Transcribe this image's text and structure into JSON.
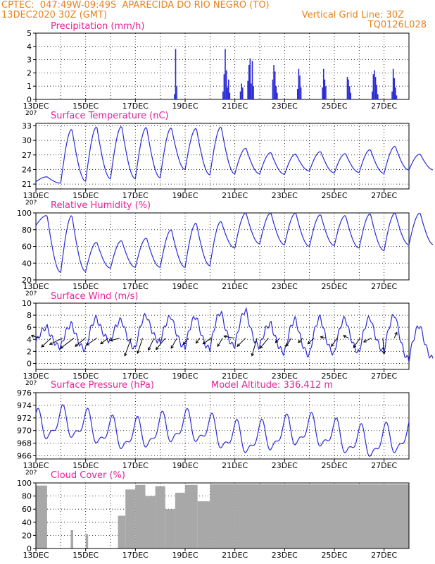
{
  "header": {
    "line1": "CPTEC:  047:49W-09:49S  APARECIDA DO RIO NEGRO (TO)",
    "line2_left": "13DEC2020 30Z (GMT)",
    "line2_right": "Vertical Grid Line: 30Z",
    "line3_right": "TQ0126L028",
    "color": "#e8821e"
  },
  "style": {
    "series_color": "#2b2bd6",
    "title_color": "#e8209a",
    "cloud_color": "#a8a8a8",
    "arrow_color": "#000000"
  },
  "x_tick_labels": [
    "13DEC",
    "15DEC",
    "17DEC",
    "19DEC",
    "21DEC",
    "23DEC",
    "25DEC",
    "27DEC"
  ],
  "x_first_tick_sublabel": "20?",
  "chart_data": [
    {
      "type": "bar",
      "title": "Precipitation (mm/h)",
      "ylim": [
        0,
        5
      ],
      "yticks": [
        "0",
        "1",
        "2",
        "3",
        "4",
        "5"
      ],
      "x": [
        "13DEC",
        "15DEC",
        "17DEC",
        "19DEC",
        "21DEC",
        "23DEC",
        "25DEC",
        "27DEC"
      ],
      "grid": true,
      "values_by_day": [
        {
          "day": 18.55,
          "values": [
            0.4,
            3.8,
            1.0
          ]
        },
        {
          "day": 20.5,
          "values": [
            0.6,
            1.9,
            3.8,
            2.2,
            0.9,
            1.5,
            0.5
          ]
        },
        {
          "day": 21.2,
          "values": [
            0.6,
            1.2,
            0.9
          ]
        },
        {
          "day": 21.5,
          "values": [
            1.4,
            2.6,
            3.1,
            1.2,
            2.9,
            1.0
          ]
        },
        {
          "day": 22.5,
          "values": [
            1.5,
            2.6,
            2.1,
            1.0,
            0.5
          ]
        },
        {
          "day": 23.5,
          "values": [
            0.8,
            2.3,
            1.8,
            0.9
          ]
        },
        {
          "day": 24.5,
          "values": [
            0.9,
            2.3,
            1.5,
            1.0
          ]
        },
        {
          "day": 25.5,
          "values": [
            1.7,
            1.5,
            1.0,
            0.5
          ]
        },
        {
          "day": 26.5,
          "values": [
            0.6,
            1.9,
            2.2,
            1.7,
            1.1,
            0.4
          ]
        },
        {
          "day": 27.3,
          "values": [
            0.6,
            2.3,
            1.6,
            0.9,
            0.3
          ]
        }
      ]
    },
    {
      "type": "line",
      "title": "Surface Temperature (nC)",
      "ylim": [
        20,
        33.5
      ],
      "yticks": [
        "21",
        "24",
        "27",
        "30",
        "33"
      ],
      "x": [
        "13DEC",
        "15DEC",
        "17DEC",
        "19DEC",
        "21DEC",
        "23DEC",
        "25DEC",
        "27DEC"
      ],
      "grid": true,
      "daily_min": [
        21.5,
        21.2,
        21.6,
        22.1,
        22.1,
        22.3,
        24.0,
        22.9,
        23.1,
        23.1,
        23.0,
        23.7,
        23.3,
        23.4,
        23.2,
        23.9
      ],
      "daily_max": [
        22.5,
        32.3,
        32.8,
        32.9,
        32.7,
        32.6,
        32.5,
        32.8,
        28.4,
        27.5,
        27.2,
        27.7,
        27.3,
        28.1,
        28.8,
        27.2
      ]
    },
    {
      "type": "line",
      "title": "Relative Humidity (%)",
      "ylim": [
        20,
        100
      ],
      "yticks": [
        "20",
        "40",
        "60",
        "80",
        "100"
      ],
      "x": [
        "13DEC",
        "15DEC",
        "17DEC",
        "19DEC",
        "21DEC",
        "23DEC",
        "25DEC",
        "27DEC"
      ],
      "grid": true,
      "daily_min": [
        85,
        29,
        30,
        34,
        35,
        35,
        35,
        37,
        58,
        63,
        62,
        60,
        61,
        58,
        55,
        62
      ],
      "daily_max": [
        97,
        97,
        65,
        67,
        70,
        80,
        88,
        90,
        100,
        100,
        100,
        98,
        97,
        99,
        100,
        100
      ]
    },
    {
      "type": "line",
      "title": "Surface Wind (m/s)",
      "ylim": [
        -1,
        10
      ],
      "yticks": [
        "0",
        "2",
        "4",
        "6",
        "8",
        "10"
      ],
      "x": [
        "13DEC",
        "15DEC",
        "17DEC",
        "19DEC",
        "21DEC",
        "23DEC",
        "25DEC",
        "27DEC"
      ],
      "grid": true,
      "daily_min": [
        3.5,
        2.7,
        2.3,
        3.8,
        2.6,
        3.6,
        2.7,
        2.4,
        2.8,
        2.8,
        1.8,
        1.4,
        1.7,
        1.9,
        2.1,
        0.7
      ],
      "daily_max": [
        6.0,
        6.5,
        7.5,
        7.2,
        8.0,
        7.8,
        7.8,
        8.5,
        8.8,
        6.6,
        7.3,
        7.6,
        7.5,
        7.6,
        8.1,
        6.3
      ],
      "vectors": [
        {
          "u": -1.3,
          "v": 0.4
        },
        {
          "u": -1.5,
          "v": -1.4
        },
        {
          "u": -2.0,
          "v": -1.0
        },
        {
          "u": -2.1,
          "v": -1.6
        },
        {
          "u": -1.6,
          "v": -1.3
        },
        {
          "u": -1.6,
          "v": -1.1
        },
        {
          "u": -1.2,
          "v": -0.9
        },
        {
          "u": -1.5,
          "v": -0.4
        },
        {
          "u": -1.0,
          "v": -2.8
        },
        {
          "u": -0.8,
          "v": -2.4
        },
        {
          "u": -0.9,
          "v": -1.9
        },
        {
          "u": -1.5,
          "v": -1.8
        },
        {
          "u": -0.9,
          "v": -1.6
        },
        {
          "u": -0.8,
          "v": -1.0
        },
        {
          "u": -0.6,
          "v": -0.8
        },
        {
          "u": -1.3,
          "v": -0.9
        },
        {
          "u": -0.8,
          "v": -1.3
        },
        {
          "u": -1.6,
          "v": 0.3
        },
        {
          "u": -1.3,
          "v": -1.3
        },
        {
          "u": -0.8,
          "v": -2.8
        },
        {
          "u": -1.3,
          "v": -1.6
        },
        {
          "u": -0.7,
          "v": -0.7
        },
        {
          "u": -0.8,
          "v": -1.3
        },
        {
          "u": -0.7,
          "v": -0.7
        },
        {
          "u": -1.0,
          "v": -0.9
        },
        {
          "u": -0.8,
          "v": 0.2
        },
        {
          "u": -0.9,
          "v": -1.3
        },
        {
          "u": -0.8,
          "v": 0.4
        },
        {
          "u": -1.0,
          "v": -1.5
        },
        {
          "u": -1.2,
          "v": -0.6
        },
        {
          "u": 0.2,
          "v": -2.5
        },
        {
          "u": 0.4,
          "v": 0.9
        }
      ]
    },
    {
      "type": "line",
      "title": "Surface Pressure (hPa)",
      "annotation": "Model Altitude: 336.412 m",
      "ylim": [
        965.5,
        976
      ],
      "yticks": [
        "966",
        "968",
        "970",
        "972",
        "974",
        "976"
      ],
      "x": [
        "13DEC",
        "15DEC",
        "17DEC",
        "19DEC",
        "21DEC",
        "23DEC",
        "25DEC",
        "27DEC"
      ],
      "grid": true,
      "diurnal": {
        "base": 970.4,
        "amplitude": 2.1,
        "trend_per_day": -0.12
      }
    },
    {
      "type": "area",
      "title": "Cloud Cover (%)",
      "ylim": [
        0,
        100
      ],
      "yticks": [
        "0",
        "20",
        "40",
        "60",
        "80",
        "100"
      ],
      "x": [
        "13DEC",
        "15DEC",
        "17DEC",
        "19DEC",
        "21DEC",
        "23DEC",
        "25DEC",
        "27DEC"
      ],
      "grid": true,
      "segments": [
        {
          "from": 13.0,
          "to": 13.45,
          "value": 96
        },
        {
          "from": 13.45,
          "to": 14.4,
          "value": 0
        },
        {
          "from": 14.4,
          "to": 14.5,
          "value": 28
        },
        {
          "from": 14.5,
          "to": 15.0,
          "value": 0
        },
        {
          "from": 15.0,
          "to": 15.1,
          "value": 22
        },
        {
          "from": 15.1,
          "to": 16.3,
          "value": 0
        },
        {
          "from": 16.3,
          "to": 16.6,
          "value": 50
        },
        {
          "from": 16.6,
          "to": 17.0,
          "value": 90
        },
        {
          "from": 17.0,
          "to": 17.4,
          "value": 97
        },
        {
          "from": 17.4,
          "to": 17.8,
          "value": 80
        },
        {
          "from": 17.8,
          "to": 18.2,
          "value": 95
        },
        {
          "from": 18.2,
          "to": 18.6,
          "value": 60
        },
        {
          "from": 18.6,
          "to": 19.0,
          "value": 85
        },
        {
          "from": 19.0,
          "to": 19.5,
          "value": 97
        },
        {
          "from": 19.5,
          "to": 20.0,
          "value": 72
        },
        {
          "from": 20.0,
          "to": 21.0,
          "value": 98
        },
        {
          "from": 21.0,
          "to": 28.0,
          "value": 98
        }
      ]
    }
  ]
}
